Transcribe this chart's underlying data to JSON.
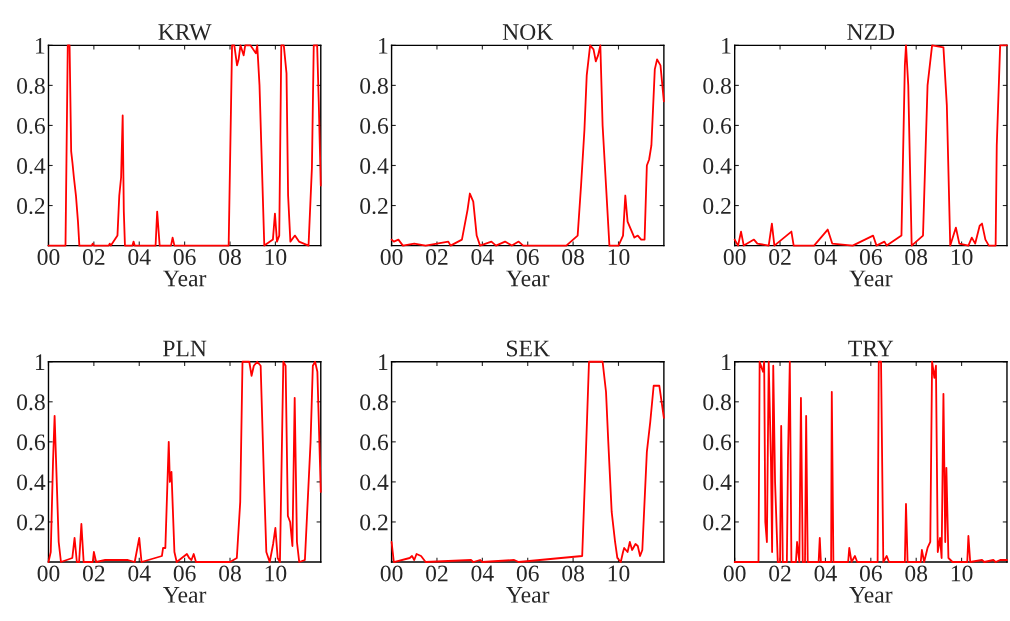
{
  "chart_data": [
    {
      "type": "line",
      "title": "KRW",
      "xlabel": "Year",
      "color": "#ff0000",
      "grid": false,
      "marker": "none",
      "line_style": "solid",
      "xlim": [
        2000,
        2012
      ],
      "ylim": [
        0,
        1
      ],
      "xticks": [
        {
          "value": 2000,
          "label": "00"
        },
        {
          "value": 2002,
          "label": "02"
        },
        {
          "value": 2004,
          "label": "04"
        },
        {
          "value": 2006,
          "label": "06"
        },
        {
          "value": 2008,
          "label": "08"
        },
        {
          "value": 2010,
          "label": "10"
        }
      ],
      "yticks": [
        0.2,
        0.4,
        0.6,
        0.8,
        1
      ],
      "x": [
        2000.0,
        2000.75,
        2000.85,
        2000.93,
        2001.0,
        2001.06,
        2001.12,
        2001.21,
        2001.3,
        2001.36,
        2001.9,
        2001.95,
        2002.0,
        2002.65,
        2002.7,
        2002.75,
        2003.04,
        2003.12,
        2003.2,
        2003.27,
        2003.32,
        2003.37,
        2003.7,
        2003.75,
        2003.8,
        2004.72,
        2004.79,
        2004.9,
        2005.4,
        2005.47,
        2005.55,
        2007.94,
        2008.09,
        2008.19,
        2008.31,
        2008.38,
        2008.46,
        2008.6,
        2008.67,
        2008.9,
        2009.14,
        2009.2,
        2009.3,
        2009.51,
        2009.89,
        2009.98,
        2010.07,
        2010.17,
        2010.26,
        2010.37,
        2010.49,
        2010.56,
        2010.66,
        2010.86,
        2011.04,
        2011.46,
        2011.61,
        2011.69,
        2011.84,
        2011.91,
        2012.0
      ],
      "values": [
        0.0,
        0.0,
        1.0,
        1.0,
        0.47,
        0.41,
        0.34,
        0.25,
        0.12,
        0.0,
        0.0,
        0.01,
        0.0,
        0.0,
        0.01,
        0.0,
        0.05,
        0.25,
        0.34,
        0.65,
        0.17,
        0.0,
        0.0,
        0.02,
        0.0,
        0.0,
        0.17,
        0.0,
        0.0,
        0.04,
        0.0,
        0.0,
        1.0,
        1.0,
        0.9,
        0.93,
        1.0,
        0.95,
        1.0,
        1.0,
        0.96,
        1.0,
        0.8,
        0.0,
        0.03,
        0.16,
        0.02,
        0.05,
        1.0,
        1.0,
        0.86,
        0.25,
        0.02,
        0.05,
        0.02,
        0.0,
        0.39,
        1.0,
        1.0,
        0.72,
        0.3
      ]
    },
    {
      "type": "line",
      "title": "NOK",
      "xlabel": "Year",
      "color": "#ff0000",
      "grid": false,
      "marker": "none",
      "line_style": "solid",
      "xlim": [
        2000,
        2012
      ],
      "ylim": [
        0,
        1
      ],
      "xticks": [
        {
          "value": 2000,
          "label": "00"
        },
        {
          "value": 2002,
          "label": "02"
        },
        {
          "value": 2004,
          "label": "04"
        },
        {
          "value": 2006,
          "label": "06"
        },
        {
          "value": 2008,
          "label": "08"
        },
        {
          "value": 2010,
          "label": "10"
        }
      ],
      "yticks": [
        0.2,
        0.4,
        0.6,
        0.8,
        1
      ],
      "x": [
        2000.0,
        2000.1,
        2000.3,
        2000.5,
        2001.0,
        2001.5,
        2002.5,
        2002.6,
        2003.1,
        2003.35,
        2003.45,
        2003.6,
        2003.75,
        2003.9,
        2004.4,
        2004.6,
        2005.0,
        2005.3,
        2005.6,
        2005.8,
        2006.5,
        2007.7,
        2007.9,
        2008.2,
        2008.35,
        2008.5,
        2008.6,
        2008.75,
        2008.9,
        2009.0,
        2009.1,
        2009.2,
        2009.3,
        2009.45,
        2009.6,
        2010.0,
        2010.2,
        2010.3,
        2010.4,
        2010.55,
        2010.7,
        2010.85,
        2011.0,
        2011.15,
        2011.25,
        2011.35,
        2011.45,
        2011.6,
        2011.7,
        2011.85,
        2012.0
      ],
      "values": [
        0.03,
        0.02,
        0.03,
        0.0,
        0.01,
        0.0,
        0.02,
        0.0,
        0.03,
        0.18,
        0.26,
        0.22,
        0.05,
        0.0,
        0.02,
        0.0,
        0.02,
        0.0,
        0.02,
        0.0,
        0.0,
        0.0,
        0.02,
        0.05,
        0.3,
        0.58,
        0.85,
        1.0,
        0.98,
        0.92,
        0.95,
        1.0,
        0.6,
        0.3,
        0.0,
        0.0,
        0.05,
        0.25,
        0.12,
        0.08,
        0.04,
        0.05,
        0.03,
        0.03,
        0.4,
        0.43,
        0.5,
        0.88,
        0.93,
        0.9,
        0.72
      ]
    },
    {
      "type": "line",
      "title": "NZD",
      "xlabel": "Year",
      "color": "#ff0000",
      "grid": false,
      "marker": "none",
      "line_style": "solid",
      "xlim": [
        2000,
        2012
      ],
      "ylim": [
        0,
        1
      ],
      "xticks": [
        {
          "value": 2000,
          "label": "00"
        },
        {
          "value": 2002,
          "label": "02"
        },
        {
          "value": 2004,
          "label": "04"
        },
        {
          "value": 2006,
          "label": "06"
        },
        {
          "value": 2008,
          "label": "08"
        },
        {
          "value": 2010,
          "label": "10"
        }
      ],
      "yticks": [
        0.2,
        0.4,
        0.6,
        0.8,
        1
      ],
      "x": [
        2000.0,
        2000.15,
        2000.28,
        2000.4,
        2000.85,
        2001.0,
        2001.5,
        2001.64,
        2001.75,
        2002.5,
        2002.6,
        2003.5,
        2004.1,
        2004.3,
        2005.2,
        2006.1,
        2006.25,
        2006.6,
        2006.7,
        2007.35,
        2007.5,
        2007.55,
        2007.65,
        2007.8,
        2008.3,
        2008.5,
        2008.7,
        2009.2,
        2009.35,
        2009.5,
        2009.75,
        2009.9,
        2010.3,
        2010.45,
        2010.6,
        2010.8,
        2010.9,
        2011.05,
        2011.2,
        2011.5,
        2011.55,
        2011.7,
        2012.0
      ],
      "values": [
        0.03,
        0.0,
        0.07,
        0.0,
        0.03,
        0.01,
        0.0,
        0.11,
        0.0,
        0.07,
        0.0,
        0.0,
        0.08,
        0.01,
        0.0,
        0.05,
        0.0,
        0.02,
        0.0,
        0.05,
        0.9,
        1.0,
        0.8,
        0.0,
        0.05,
        0.8,
        1.0,
        0.99,
        0.7,
        0.0,
        0.09,
        0.01,
        0.0,
        0.04,
        0.01,
        0.1,
        0.11,
        0.03,
        0.0,
        0.0,
        0.5,
        1.0,
        1.0
      ]
    },
    {
      "type": "line",
      "title": "PLN",
      "xlabel": "Year",
      "color": "#ff0000",
      "grid": false,
      "marker": "none",
      "line_style": "solid",
      "xlim": [
        2000,
        2012
      ],
      "ylim": [
        0,
        1
      ],
      "xticks": [
        {
          "value": 2000,
          "label": "00"
        },
        {
          "value": 2002,
          "label": "02"
        },
        {
          "value": 2004,
          "label": "04"
        },
        {
          "value": 2006,
          "label": "06"
        },
        {
          "value": 2008,
          "label": "08"
        },
        {
          "value": 2010,
          "label": "10"
        }
      ],
      "yticks": [
        0.2,
        0.4,
        0.6,
        0.8,
        1
      ],
      "x": [
        2000.0,
        2000.1,
        2000.2,
        2000.27,
        2000.35,
        2000.45,
        2000.55,
        2001.05,
        2001.15,
        2001.25,
        2001.35,
        2001.45,
        2001.55,
        2001.95,
        2002.0,
        2002.1,
        2002.5,
        2003.5,
        2003.8,
        2004.0,
        2004.1,
        2005.0,
        2005.05,
        2005.15,
        2005.3,
        2005.35,
        2005.42,
        2005.55,
        2005.65,
        2006.1,
        2006.2,
        2006.3,
        2006.4,
        2006.5,
        2008.0,
        2008.3,
        2008.45,
        2008.55,
        2008.85,
        2008.95,
        2009.05,
        2009.2,
        2009.35,
        2009.5,
        2009.6,
        2009.75,
        2009.9,
        2010.0,
        2010.1,
        2010.2,
        2010.35,
        2010.45,
        2010.55,
        2010.65,
        2010.75,
        2010.85,
        2010.95,
        2011.05,
        2011.3,
        2011.55,
        2011.65,
        2011.75,
        2011.85,
        2012.0
      ],
      "values": [
        0.0,
        0.05,
        0.5,
        0.73,
        0.45,
        0.1,
        0.0,
        0.02,
        0.12,
        0.0,
        0.0,
        0.19,
        0.0,
        0.0,
        0.05,
        0.0,
        0.01,
        0.01,
        0.0,
        0.12,
        0.0,
        0.03,
        0.07,
        0.07,
        0.6,
        0.4,
        0.45,
        0.05,
        0.0,
        0.04,
        0.02,
        0.01,
        0.04,
        0.0,
        0.0,
        0.02,
        0.3,
        1.0,
        1.0,
        0.93,
        0.98,
        1.0,
        0.98,
        0.4,
        0.05,
        0.0,
        0.09,
        0.17,
        0.02,
        0.0,
        1.0,
        0.98,
        0.23,
        0.2,
        0.08,
        0.82,
        0.1,
        0.0,
        0.01,
        0.6,
        0.98,
        1.0,
        0.95,
        0.35
      ]
    },
    {
      "type": "line",
      "title": "SEK",
      "xlabel": "Year",
      "color": "#ff0000",
      "grid": false,
      "marker": "none",
      "line_style": "solid",
      "xlim": [
        2000,
        2012
      ],
      "ylim": [
        0,
        1
      ],
      "xticks": [
        {
          "value": 2000,
          "label": "00"
        },
        {
          "value": 2002,
          "label": "02"
        },
        {
          "value": 2004,
          "label": "04"
        },
        {
          "value": 2006,
          "label": "06"
        },
        {
          "value": 2008,
          "label": "08"
        },
        {
          "value": 2010,
          "label": "10"
        }
      ],
      "yticks": [
        0.2,
        0.4,
        0.6,
        0.8,
        1
      ],
      "x": [
        2000.0,
        2000.05,
        2000.1,
        2000.8,
        2000.9,
        2001.0,
        2001.1,
        2001.3,
        2001.5,
        2003.5,
        2003.6,
        2003.9,
        2004.0,
        2005.4,
        2005.6,
        2008.4,
        2008.55,
        2008.7,
        2009.3,
        2009.45,
        2009.55,
        2009.7,
        2009.85,
        2009.95,
        2010.1,
        2010.2,
        2010.25,
        2010.4,
        2010.5,
        2010.6,
        2010.75,
        2010.85,
        2010.95,
        2011.05,
        2011.25,
        2011.4,
        2011.55,
        2011.8,
        2012.0
      ],
      "values": [
        0.1,
        0.05,
        0.0,
        0.02,
        0.03,
        0.01,
        0.04,
        0.03,
        0.0,
        0.01,
        0.0,
        0.01,
        0.0,
        0.01,
        0.0,
        0.03,
        0.5,
        1.0,
        1.0,
        0.85,
        0.6,
        0.25,
        0.1,
        0.02,
        0.0,
        0.05,
        0.07,
        0.05,
        0.1,
        0.06,
        0.09,
        0.08,
        0.03,
        0.06,
        0.55,
        0.7,
        0.88,
        0.88,
        0.72
      ]
    },
    {
      "type": "line",
      "title": "TRY",
      "xlabel": "Year",
      "color": "#ff0000",
      "grid": false,
      "marker": "none",
      "line_style": "solid",
      "xlim": [
        2000,
        2012
      ],
      "ylim": [
        0,
        1
      ],
      "xticks": [
        {
          "value": 2000,
          "label": "00"
        },
        {
          "value": 2002,
          "label": "02"
        },
        {
          "value": 2004,
          "label": "04"
        },
        {
          "value": 2006,
          "label": "06"
        },
        {
          "value": 2008,
          "label": "08"
        },
        {
          "value": 2010,
          "label": "10"
        }
      ],
      "yticks": [
        0.2,
        0.4,
        0.6,
        0.8,
        1
      ],
      "x": [
        2000.0,
        2001.05,
        2001.1,
        2001.25,
        2001.3,
        2001.35,
        2001.42,
        2001.5,
        2001.6,
        2001.65,
        2001.7,
        2001.78,
        2001.9,
        2002.0,
        2002.05,
        2002.12,
        2002.3,
        2002.35,
        2002.43,
        2002.5,
        2002.7,
        2002.75,
        2002.85,
        2002.92,
        2003.0,
        2003.1,
        2003.15,
        2003.22,
        2003.7,
        2003.75,
        2003.8,
        2004.25,
        2004.28,
        2004.35,
        2005.0,
        2005.05,
        2005.15,
        2005.3,
        2005.4,
        2006.3,
        2006.35,
        2006.45,
        2006.55,
        2006.7,
        2006.8,
        2007.5,
        2007.55,
        2007.62,
        2008.2,
        2008.25,
        2008.35,
        2008.5,
        2008.62,
        2008.7,
        2008.8,
        2008.87,
        2008.95,
        2009.05,
        2009.12,
        2009.2,
        2009.28,
        2009.33,
        2009.42,
        2009.6,
        2010.25,
        2010.3,
        2010.38,
        2010.9,
        2011.0,
        2011.4,
        2011.5,
        2011.7,
        2012.0
      ],
      "values": [
        0.0,
        0.0,
        1.0,
        0.95,
        1.0,
        0.2,
        0.1,
        1.0,
        0.5,
        0.05,
        0.98,
        0.4,
        0.0,
        0.0,
        0.68,
        0.0,
        0.0,
        0.52,
        1.0,
        0.0,
        0.0,
        0.1,
        0.0,
        0.82,
        0.0,
        0.0,
        0.73,
        0.0,
        0.0,
        0.12,
        0.0,
        0.0,
        0.85,
        0.0,
        0.0,
        0.07,
        0.0,
        0.03,
        0.0,
        0.0,
        1.0,
        1.0,
        0.0,
        0.03,
        0.0,
        0.0,
        0.29,
        0.0,
        0.0,
        0.06,
        0.0,
        0.07,
        0.1,
        1.0,
        0.92,
        0.98,
        0.05,
        0.12,
        0.02,
        0.84,
        0.1,
        0.47,
        0.02,
        0.0,
        0.0,
        0.13,
        0.0,
        0.01,
        0.0,
        0.01,
        0.0,
        0.01,
        0.01
      ]
    }
  ]
}
